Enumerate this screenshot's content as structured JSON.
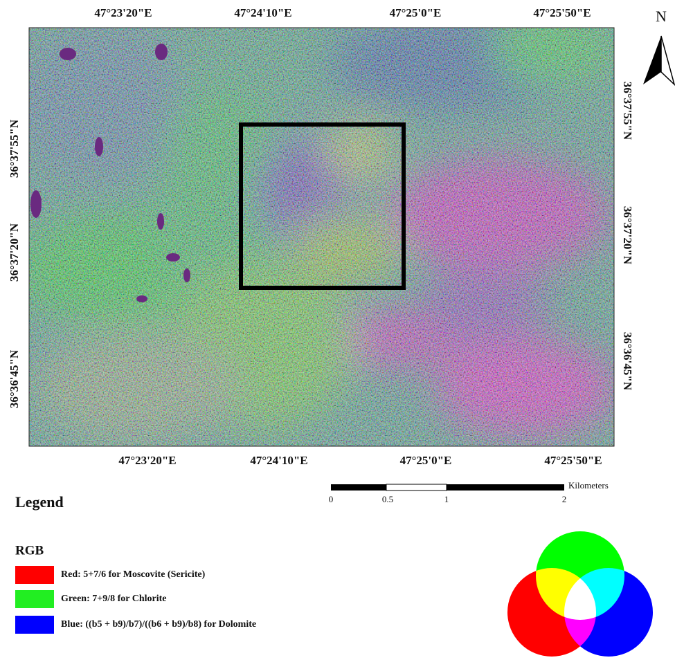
{
  "map": {
    "top_longitudes": [
      "47°23'20\"E",
      "47°24'10\"E",
      "47°25'0\"E",
      "47°25'50\"E"
    ],
    "bottom_longitudes": [
      "47°23'20\"E",
      "47°24'10\"E",
      "47°25'0\"E",
      "47°25'50\"E"
    ],
    "left_latitudes": [
      "36°37'55\"N",
      "36°37'20\"N",
      "36°36'45\"N"
    ],
    "right_latitudes": [
      "36°37'55\"N",
      "36°37'20\"N",
      "36°36'45\"N"
    ]
  },
  "north": "N",
  "scale_bar": {
    "ticks": [
      "0",
      "0.5",
      "1",
      "2"
    ],
    "unit": "Kilometers"
  },
  "legend": {
    "title": "Legend",
    "subtitle": "RGB",
    "items": [
      {
        "label": "Red: 5+7/6 for Moscovite (Sericite)",
        "color": "#ff0000"
      },
      {
        "label": "Green: 7+9/8 for Chlorite",
        "color": "#22ee22"
      },
      {
        "label": "Blue: ((b5 + b9)/b7)/((b6 + b9)/b8) for Dolomite",
        "color": "#0000ff"
      }
    ]
  }
}
